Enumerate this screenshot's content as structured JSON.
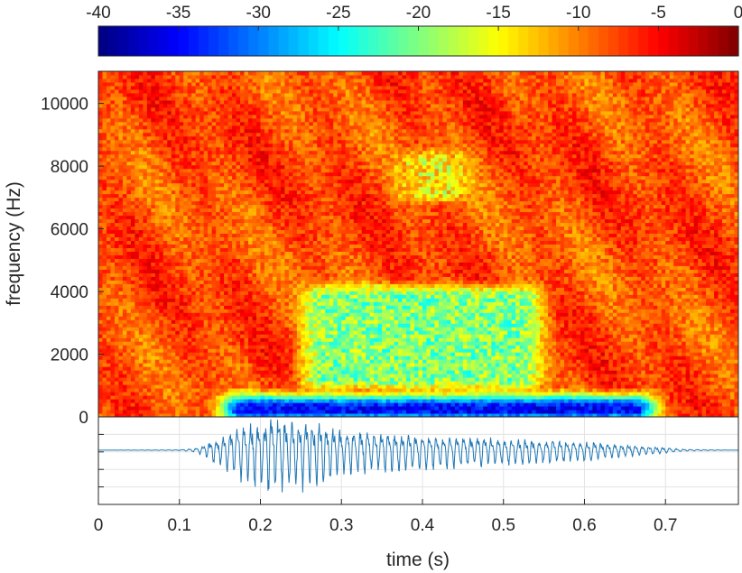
{
  "chart_data": [
    {
      "type": "heatmap",
      "role": "spectrogram",
      "ylabel": "frequency (Hz)",
      "xlim": [
        0,
        0.79
      ],
      "ylim": [
        0,
        11025
      ],
      "y_ticks": [
        0,
        2000,
        4000,
        6000,
        8000,
        10000
      ],
      "colorbar": {
        "ticks": [
          -40,
          -35,
          -30,
          -25,
          -20,
          -15,
          -10,
          -5,
          0
        ],
        "range": [
          -40,
          0
        ],
        "colormap": "jet"
      },
      "low_energy_regions": [
        {
          "desc": "low-frequency energy band",
          "x": [
            0.16,
            0.68
          ],
          "y": [
            0,
            700
          ],
          "level_db": -35
        },
        {
          "desc": "mid-frequency region",
          "x": [
            0.26,
            0.54
          ],
          "y": [
            1000,
            4200
          ],
          "level_db": -20
        },
        {
          "desc": "upper band",
          "x": [
            0.38,
            0.45
          ],
          "y": [
            7000,
            8500
          ],
          "level_db": -15
        }
      ],
      "background_level_db": -8
    },
    {
      "type": "line",
      "role": "waveform",
      "xlabel": "time (s)",
      "x_ticks": [
        0,
        0.1,
        0.2,
        0.3,
        0.4,
        0.5,
        0.6,
        0.7
      ],
      "xlim": [
        0,
        0.79
      ],
      "series_color": "#1f77b4",
      "envelope": {
        "t": [
          0.0,
          0.1,
          0.12,
          0.15,
          0.18,
          0.21,
          0.24,
          0.27,
          0.3,
          0.35,
          0.4,
          0.45,
          0.5,
          0.55,
          0.6,
          0.65,
          0.7,
          0.73,
          0.79
        ],
        "amp": [
          0.0,
          0.01,
          0.05,
          0.35,
          0.75,
          1.0,
          0.95,
          0.85,
          0.6,
          0.5,
          0.45,
          0.4,
          0.35,
          0.3,
          0.25,
          0.15,
          0.07,
          0.02,
          0.0
        ]
      }
    }
  ]
}
